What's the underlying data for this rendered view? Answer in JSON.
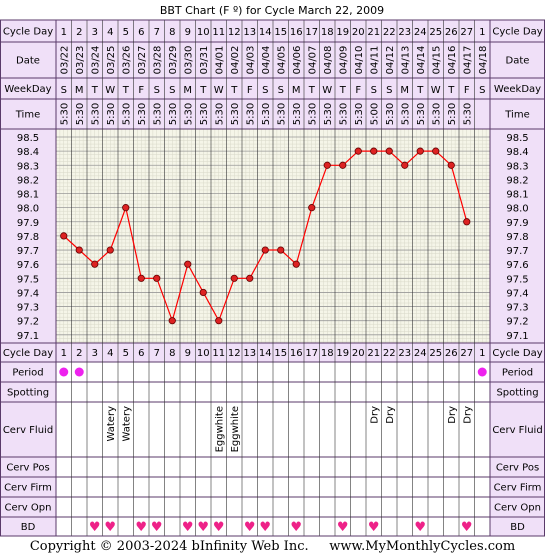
{
  "title": "BBT Chart (F º) for Cycle March 22, 2009",
  "row_labels": {
    "cycle_day": "Cycle Day",
    "date": "Date",
    "weekday": "WeekDay",
    "time": "Time",
    "period": "Period",
    "spotting": "Spotting",
    "cerv_fluid": "Cerv Fluid",
    "cerv_pos": "Cerv Pos",
    "cerv_firm": "Cerv Firm",
    "cerv_opn": "Cerv Opn",
    "bd": "BD"
  },
  "colors": {
    "header_bg": "#f0e0f8",
    "grid_bg": "#f5f5e8",
    "border": "#5a3a6a",
    "line": "#ff0000",
    "point_fill": "#dd2222",
    "period": "#ee22ee",
    "heart": "#ee2288"
  },
  "footer": {
    "copyright": "Copyright © 2003-2024 bInfinity Web Inc.",
    "site": "www.MyMonthlyCycles.com"
  },
  "chart_data": {
    "type": "line",
    "title": "BBT Chart (F º) for Cycle March 22, 2009",
    "ylim": [
      97.1,
      98.5
    ],
    "ticks": [
      "98.5",
      "98.4",
      "98.3",
      "98.2",
      "98.1",
      "98.0",
      "97.9",
      "97.8",
      "97.7",
      "97.6",
      "97.5",
      "97.4",
      "97.3",
      "97.2",
      "97.1"
    ],
    "cycle_days": [
      "1",
      "2",
      "3",
      "4",
      "5",
      "6",
      "7",
      "8",
      "9",
      "10",
      "11",
      "12",
      "13",
      "14",
      "15",
      "16",
      "17",
      "18",
      "19",
      "20",
      "21",
      "22",
      "23",
      "24",
      "25",
      "26",
      "27",
      "1"
    ],
    "dates": [
      "03/22",
      "03/23",
      "03/24",
      "03/25",
      "03/26",
      "03/27",
      "03/28",
      "03/29",
      "03/30",
      "03/31",
      "04/01",
      "04/02",
      "04/03",
      "04/04",
      "04/05",
      "04/06",
      "04/07",
      "04/08",
      "04/09",
      "04/10",
      "04/11",
      "04/12",
      "04/13",
      "04/14",
      "04/15",
      "04/16",
      "04/17",
      "04/18"
    ],
    "weekdays": [
      "S",
      "M",
      "T",
      "W",
      "T",
      "F",
      "S",
      "S",
      "M",
      "T",
      "W",
      "T",
      "F",
      "S",
      "S",
      "M",
      "T",
      "W",
      "T",
      "F",
      "S",
      "S",
      "M",
      "T",
      "W",
      "T",
      "F",
      "S"
    ],
    "times": [
      "5:30",
      "5:30",
      "5:30",
      "5:30",
      "5:30",
      "5:30",
      "5:30",
      "5:30",
      "5:30",
      "5:30",
      "5:30",
      "5:30",
      "5:30",
      "5:30",
      "5:30",
      "5:30",
      "5:30",
      "5:30",
      "5:30",
      "5:30",
      "5:00",
      "5:30",
      "5:30",
      "5:30",
      "5:30",
      "5:30",
      "5:30",
      ""
    ],
    "series": [
      {
        "values": [
          97.8,
          97.7,
          97.6,
          97.7,
          98.0,
          97.5,
          97.5,
          97.2,
          97.6,
          97.4,
          97.2,
          97.5,
          97.5,
          97.7,
          97.7,
          97.6,
          98.0,
          98.3,
          98.3,
          98.4,
          98.4,
          98.4,
          98.3,
          98.4,
          98.4,
          98.3,
          97.9,
          null
        ]
      }
    ],
    "period": [
      true,
      true,
      false,
      false,
      false,
      false,
      false,
      false,
      false,
      false,
      false,
      false,
      false,
      false,
      false,
      false,
      false,
      false,
      false,
      false,
      false,
      false,
      false,
      false,
      false,
      false,
      false,
      true
    ],
    "cerv_fluid": [
      "",
      "",
      "",
      "Watery",
      "Watery",
      "",
      "",
      "",
      "",
      "",
      "Eggwhite",
      "Eggwhite",
      "",
      "",
      "",
      "",
      "",
      "",
      "",
      "",
      "Dry",
      "Dry",
      "",
      "",
      "",
      "Dry",
      "Dry",
      ""
    ],
    "bd": [
      false,
      false,
      true,
      true,
      false,
      true,
      true,
      false,
      true,
      true,
      true,
      false,
      true,
      true,
      false,
      true,
      false,
      false,
      true,
      false,
      true,
      false,
      false,
      true,
      false,
      false,
      true,
      false
    ]
  }
}
